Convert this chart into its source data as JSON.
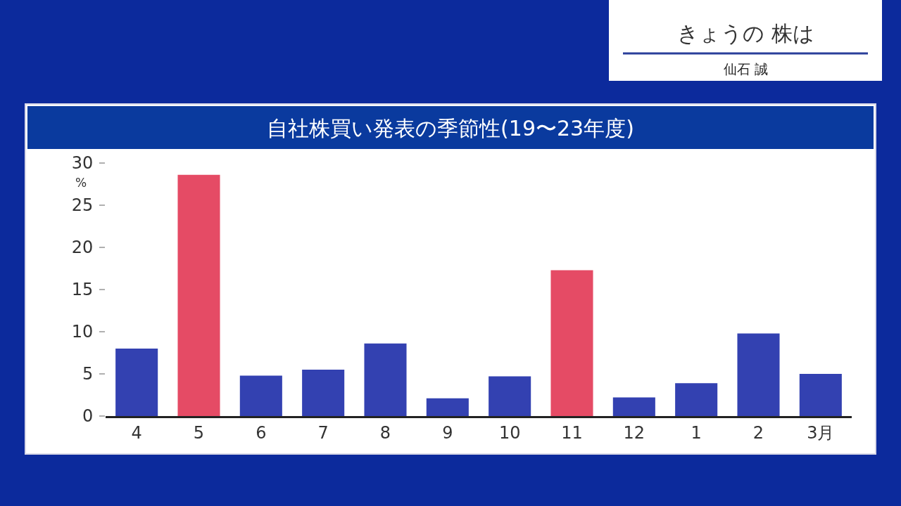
{
  "chart_data": {
    "type": "bar",
    "title": "自社株買い発表の季節性(19〜23年度)",
    "ylabel": "%",
    "annotations": [
      "きょうの 株は",
      "仙石 誠"
    ],
    "categories": [
      "4",
      "5",
      "6",
      "7",
      "8",
      "9",
      "10",
      "11",
      "12",
      "1",
      "2",
      "3月"
    ],
    "values": [
      8.0,
      28.6,
      4.8,
      5.5,
      8.6,
      2.1,
      4.7,
      17.3,
      2.2,
      3.9,
      9.8,
      5.0
    ],
    "colors": [
      "#3341b1",
      "#e54b65",
      "#3341b1",
      "#3341b1",
      "#3341b1",
      "#3341b1",
      "#3341b1",
      "#e54b65",
      "#3341b1",
      "#3341b1",
      "#3341b1",
      "#3341b1"
    ],
    "ylim": [
      0,
      30
    ],
    "yticks": [
      0,
      5,
      10,
      15,
      20,
      25,
      30
    ]
  }
}
